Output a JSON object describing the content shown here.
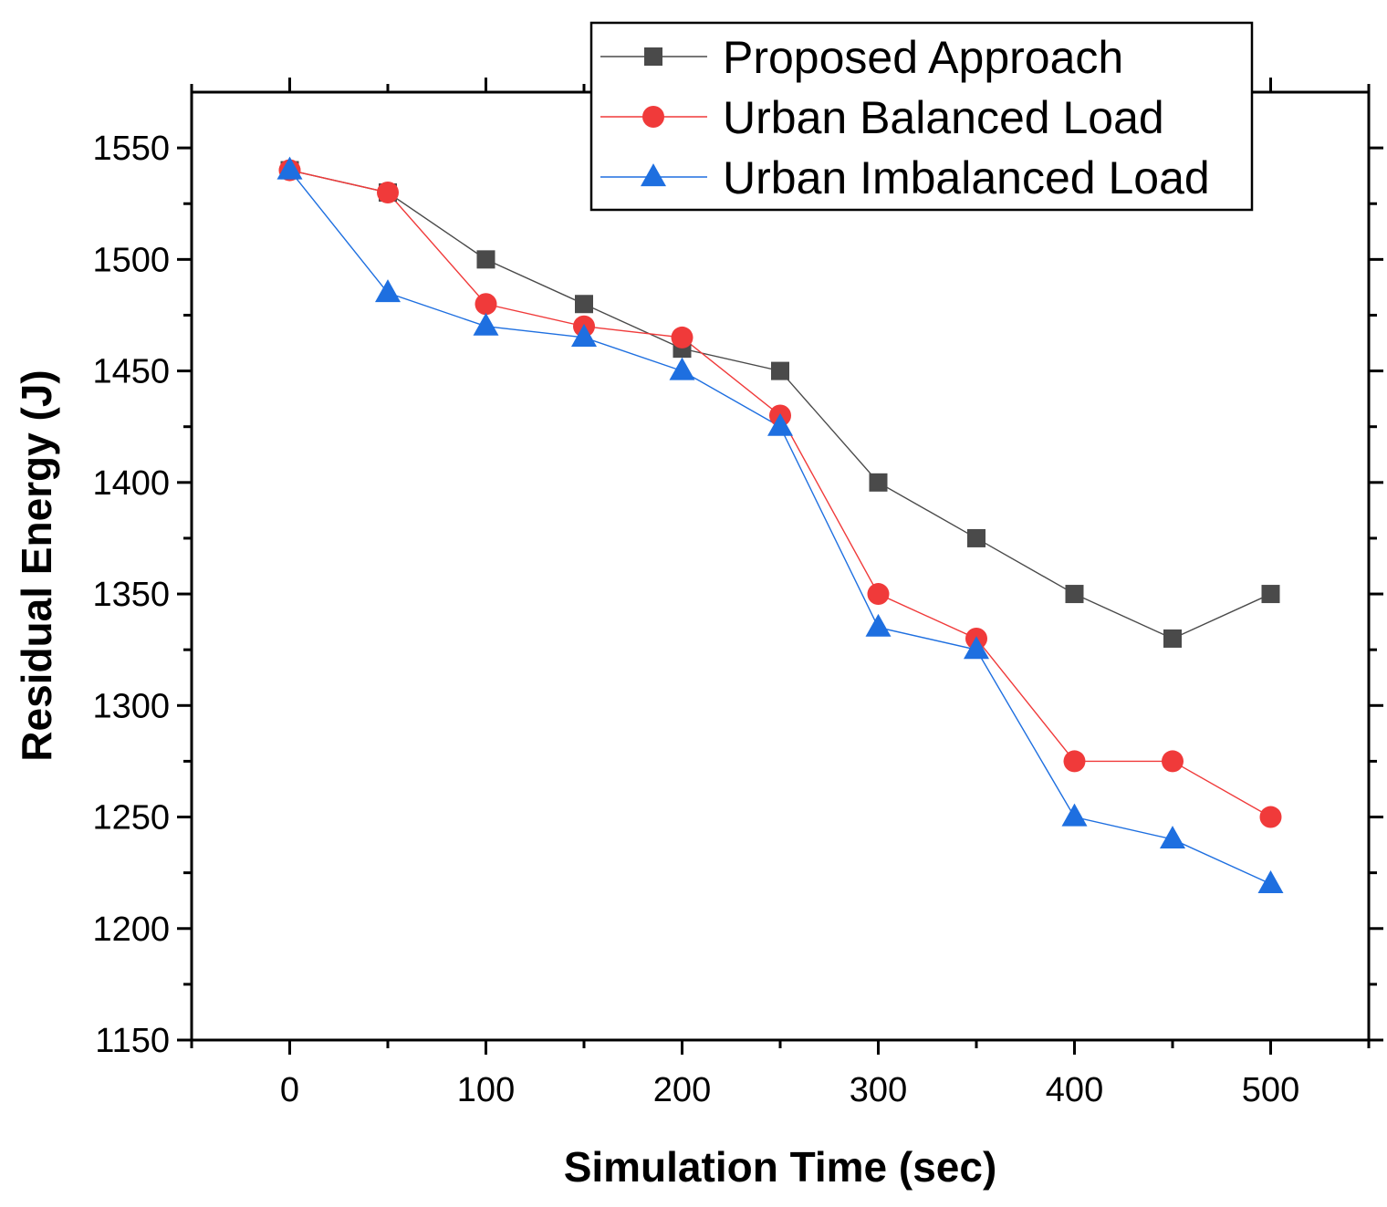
{
  "chart_data": {
    "type": "line",
    "title": "",
    "xlabel": "Simulation Time (sec)",
    "ylabel": "Residual Energy (J)",
    "xlim": [
      -50,
      550
    ],
    "ylim": [
      1150,
      1575
    ],
    "xticks": [
      0,
      100,
      200,
      300,
      400,
      500
    ],
    "yticks": [
      1150,
      1200,
      1250,
      1300,
      1350,
      1400,
      1450,
      1500,
      1550
    ],
    "legend_position": "top-right",
    "x": [
      0,
      50,
      100,
      150,
      200,
      250,
      300,
      350,
      400,
      450,
      500
    ],
    "series": [
      {
        "name": "Proposed Approach",
        "color": "#4a4a4a",
        "marker": "square",
        "values": [
          1540,
          1530,
          1500,
          1480,
          1460,
          1450,
          1400,
          1375,
          1350,
          1330,
          1350
        ]
      },
      {
        "name": "Urban Balanced Load",
        "color": "#f03a3a",
        "marker": "circle",
        "values": [
          1540,
          1530,
          1480,
          1470,
          1465,
          1430,
          1350,
          1330,
          1275,
          1275,
          1250
        ]
      },
      {
        "name": "Urban Imbalanced Load",
        "color": "#1e6fe0",
        "marker": "triangle",
        "values": [
          1540,
          1485,
          1470,
          1465,
          1450,
          1425,
          1335,
          1325,
          1250,
          1240,
          1220
        ]
      }
    ]
  }
}
